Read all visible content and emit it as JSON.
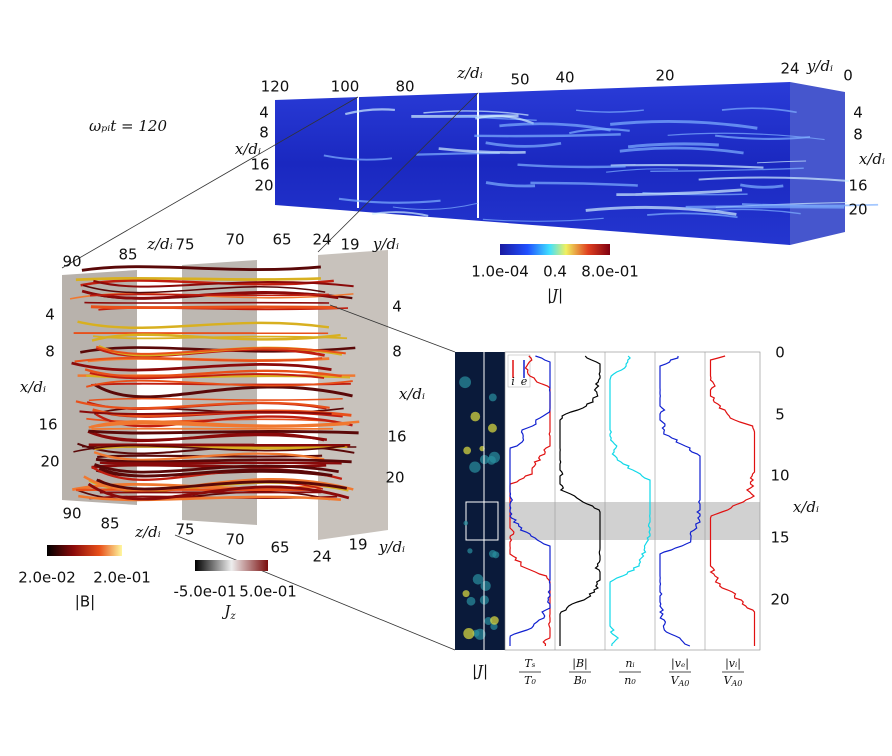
{
  "time_label": "ωₚᵢt = 120",
  "top_volume": {
    "z_axis": {
      "ticks": [
        "120",
        "100",
        "80",
        "50",
        "40",
        "20"
      ],
      "label": "z/dᵢ"
    },
    "y_axis": {
      "ticks": [
        "24",
        "0"
      ],
      "label": "y/dᵢ"
    },
    "x_axis_left": {
      "ticks": [
        "4",
        "8",
        "16",
        "20"
      ],
      "label": "x/dᵢ"
    },
    "x_axis_right": {
      "ticks": [
        "4",
        "8",
        "16",
        "20"
      ],
      "label": "x/dᵢ"
    },
    "colorbar": {
      "ticks": [
        "1.0e-04",
        "0.4",
        "8.0e-01"
      ],
      "label": "|J|"
    }
  },
  "left_volume": {
    "z_axis_top": {
      "ticks": [
        "90",
        "85",
        "75",
        "70",
        "65"
      ],
      "label": "z/dᵢ"
    },
    "y_axis_top": {
      "ticks": [
        "24",
        "19"
      ],
      "label": "y/dᵢ"
    },
    "z_axis_bottom": {
      "ticks": [
        "90",
        "85",
        "75",
        "70",
        "65"
      ],
      "label": "z/dᵢ"
    },
    "y_axis_bottom": {
      "ticks": [
        "24",
        "19"
      ],
      "label": "y/dᵢ"
    },
    "x_axis_left": {
      "ticks": [
        "4",
        "8",
        "16",
        "20"
      ],
      "label": "x/dᵢ"
    },
    "x_axis_right": {
      "ticks": [
        "4",
        "8",
        "16",
        "20"
      ],
      "label": "x/dᵢ"
    },
    "colorbar_B": {
      "ticks": [
        "2.0e-02",
        "2.0e-01"
      ],
      "label": "|B|"
    },
    "colorbar_Jz": {
      "ticks": [
        "-5.0e-01",
        "5.0e-01"
      ],
      "label": {
        "main": "J",
        "sub": "z"
      }
    }
  },
  "profiles": {
    "y_axis": {
      "ticks": [
        "0",
        "5",
        "10",
        "15",
        "20"
      ],
      "label": "x/dᵢ"
    },
    "legend": [
      "i",
      "e"
    ],
    "columns": [
      {
        "label": "|J|"
      },
      {
        "num": "Tₛ",
        "den": "T₀"
      },
      {
        "num": "|B|",
        "den": "B₀"
      },
      {
        "num": "nᵢ",
        "den": "n₀"
      },
      {
        "num": "|vₑ|",
        "den": "V",
        "den_sub": "A0"
      },
      {
        "num": "|vᵢ|",
        "den": "V",
        "den_sub": "A0"
      }
    ]
  }
}
